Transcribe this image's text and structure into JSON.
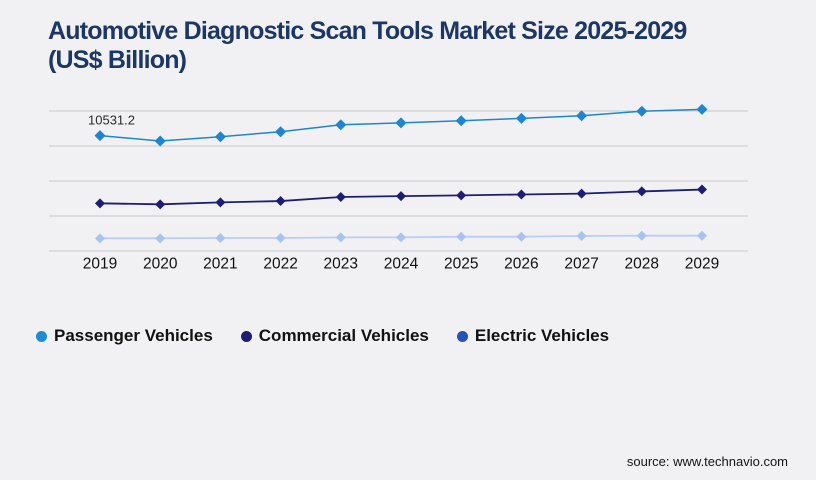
{
  "title_lines": [
    "Automotive Diagnostic Scan Tools Market Size 2025-2029",
    "(US$ Billion)"
  ],
  "source_text": "source: www.technavio.com",
  "colors": {
    "background": "#f1f1f3",
    "title": "#1c3765",
    "gridline": "#c9c9cd",
    "axis_line": "#c9c9cd",
    "tick_label": "#111111",
    "annotation_text": "#2b2b2b",
    "legend_text": "#111111",
    "source_text": "#141414"
  },
  "chart_data": {
    "type": "line",
    "title": "Automotive Diagnostic Scan Tools Market Size 2025-2029 (US$ Billion)",
    "xlabel": "",
    "ylabel": "",
    "categories": [
      "2019",
      "2020",
      "2021",
      "2022",
      "2023",
      "2024",
      "2025",
      "2026",
      "2027",
      "2028",
      "2029"
    ],
    "series": [
      {
        "name": "Passenger Vehicles",
        "line_color": "#1c86d3",
        "marker_color": "#1c86d3",
        "legend_color": "#1f8ad8",
        "line_width": 1.5,
        "marker_radius": 5.5,
        "values": [
          10531.2,
          10040,
          10430,
          10890,
          11520,
          11700,
          11890,
          12110,
          12350,
          12760,
          12930
        ]
      },
      {
        "name": "Commercial Vehicles",
        "line_color": "#1d1d75",
        "marker_color": "#1d1d75",
        "legend_color": "#1d1d75",
        "line_width": 1.8,
        "marker_radius": 5,
        "values": [
          4340,
          4250,
          4430,
          4550,
          4920,
          5000,
          5070,
          5150,
          5230,
          5430,
          5600
        ]
      },
      {
        "name": "Electric Vehicles",
        "line_color": "#b9cdf5",
        "marker_color": "#a6c4f1",
        "legend_color": "#2452bd",
        "line_width": 1.8,
        "marker_radius": 5,
        "values": [
          1140,
          1140,
          1170,
          1170,
          1230,
          1230,
          1290,
          1290,
          1350,
          1380,
          1380
        ]
      }
    ],
    "annotation": {
      "text": "10531.2",
      "series_index": 0,
      "point_index": 0
    },
    "ylim": [
      0,
      14200
    ],
    "gridline_values": [
      3200,
      6400,
      9600,
      12800
    ],
    "grid": true,
    "y_axis_labels": false,
    "legend_position": "bottom-left",
    "marker_shape": "diamond"
  }
}
